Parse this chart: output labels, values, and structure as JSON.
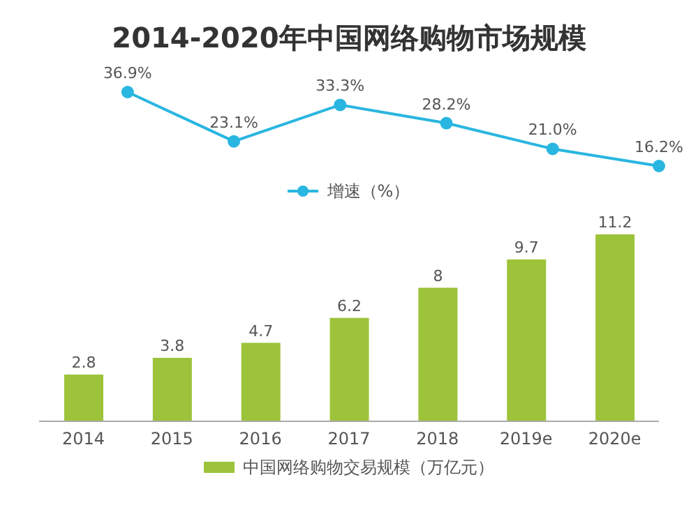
{
  "chart_data": [
    {
      "type": "line",
      "title": "2014-2020年中国网络购物市场规模",
      "categories": [
        null,
        null,
        null,
        null,
        null,
        null
      ],
      "series": [
        {
          "name": "增速（%）",
          "color": "#29b6e0",
          "values": [
            36.9,
            23.1,
            33.3,
            28.2,
            21.0,
            16.2
          ],
          "value_labels": [
            "36.9%",
            "23.1%",
            "33.3%",
            "28.2%",
            "21.0%",
            "16.2%"
          ]
        }
      ],
      "marker": "circle",
      "legend": "bottom",
      "tick_labels": false
    },
    {
      "type": "bar",
      "categories": [
        "2014",
        "2015",
        "2016",
        "2017",
        "2018",
        "2019e",
        "2020e"
      ],
      "series": [
        {
          "name": "中国网络购物交易规模（万亿元）",
          "color": "#9dc33b",
          "values": [
            2.8,
            3.8,
            4.7,
            6.2,
            8.0,
            9.7,
            11.2
          ]
        }
      ],
      "data_labels": true,
      "legend": "bottom"
    }
  ]
}
